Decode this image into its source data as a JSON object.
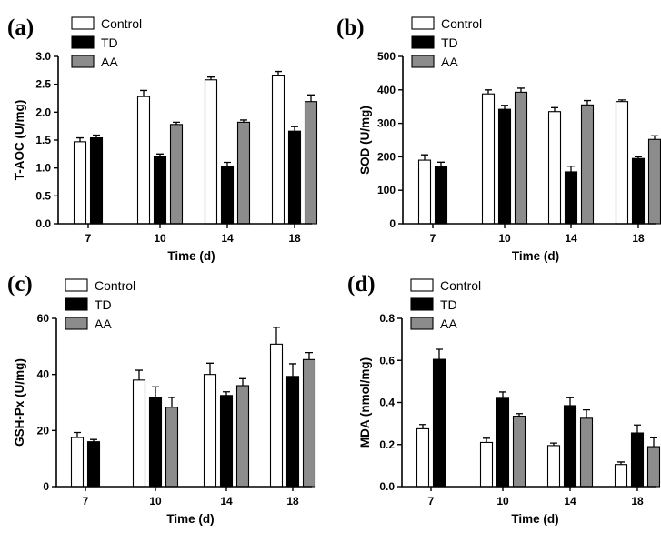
{
  "colors": {
    "Control": "#ffffff",
    "TD": "#000000",
    "AA": "#8c8c8c"
  },
  "chart_data": [
    {
      "type": "bar",
      "panel": "(a)",
      "ylabel": "T-AOC (U/mg)",
      "xlabel": "Time (d)",
      "ylim": [
        0,
        3.0
      ],
      "yticks": [
        "0.0",
        "0.5",
        "1.0",
        "1.5",
        "2.0",
        "2.5",
        "3.0"
      ],
      "categories": [
        "7",
        "10",
        "14",
        "18"
      ],
      "legend": "top-left",
      "series": [
        {
          "name": "Control",
          "values": [
            1.47,
            2.28,
            2.58,
            2.65
          ],
          "errors": [
            0.07,
            0.11,
            0.05,
            0.08
          ]
        },
        {
          "name": "TD",
          "values": [
            1.54,
            1.21,
            1.03,
            1.66
          ],
          "errors": [
            0.05,
            0.04,
            0.07,
            0.08
          ]
        },
        {
          "name": "AA",
          "values": [
            null,
            1.78,
            1.82,
            2.19
          ],
          "errors": [
            null,
            0.04,
            0.04,
            0.12
          ]
        }
      ]
    },
    {
      "type": "bar",
      "panel": "(b)",
      "ylabel": "SOD (U/mg)",
      "xlabel": "Time (d)",
      "ylim": [
        0,
        500
      ],
      "yticks": [
        "0",
        "100",
        "200",
        "300",
        "400",
        "500"
      ],
      "categories": [
        "7",
        "10",
        "14",
        "18"
      ],
      "legend": "top-left",
      "series": [
        {
          "name": "Control",
          "values": [
            190,
            388,
            335,
            365
          ],
          "errors": [
            16,
            12,
            12,
            5
          ]
        },
        {
          "name": "TD",
          "values": [
            172,
            342,
            155,
            195
          ],
          "errors": [
            12,
            12,
            17,
            5
          ]
        },
        {
          "name": "AA",
          "values": [
            null,
            393,
            355,
            252
          ],
          "errors": [
            null,
            12,
            13,
            11
          ]
        }
      ]
    },
    {
      "type": "bar",
      "panel": "(c)",
      "ylabel": "GSH-Px (U/mg)",
      "xlabel": "Time (d)",
      "ylim": [
        0,
        60
      ],
      "yticks": [
        "0",
        "20",
        "40",
        "60"
      ],
      "categories": [
        "7",
        "10",
        "14",
        "18"
      ],
      "legend": "top-left",
      "series": [
        {
          "name": "Control",
          "values": [
            17.5,
            38.0,
            40.0,
            50.8
          ],
          "errors": [
            1.8,
            3.5,
            4.0,
            6.0
          ]
        },
        {
          "name": "TD",
          "values": [
            16.0,
            31.8,
            32.5,
            39.3
          ],
          "errors": [
            0.8,
            3.8,
            1.3,
            4.5
          ]
        },
        {
          "name": "AA",
          "values": [
            null,
            28.3,
            36.0,
            45.3
          ],
          "errors": [
            null,
            3.5,
            2.5,
            2.5
          ]
        }
      ]
    },
    {
      "type": "bar",
      "panel": "(d)",
      "ylabel": "MDA (nmol/mg)",
      "xlabel": "Time (d)",
      "ylim": [
        0,
        0.8
      ],
      "yticks": [
        "0.0",
        "0.2",
        "0.4",
        "0.6",
        "0.8"
      ],
      "categories": [
        "7",
        "10",
        "14",
        "18"
      ],
      "legend": "top-left",
      "series": [
        {
          "name": "Control",
          "values": [
            0.275,
            0.21,
            0.195,
            0.105
          ],
          "errors": [
            0.02,
            0.02,
            0.012,
            0.012
          ]
        },
        {
          "name": "TD",
          "values": [
            0.605,
            0.42,
            0.385,
            0.255
          ],
          "errors": [
            0.048,
            0.03,
            0.038,
            0.038
          ]
        },
        {
          "name": "AA",
          "values": [
            null,
            0.335,
            0.325,
            0.19
          ],
          "errors": [
            null,
            0.012,
            0.04,
            0.042
          ]
        }
      ]
    }
  ]
}
